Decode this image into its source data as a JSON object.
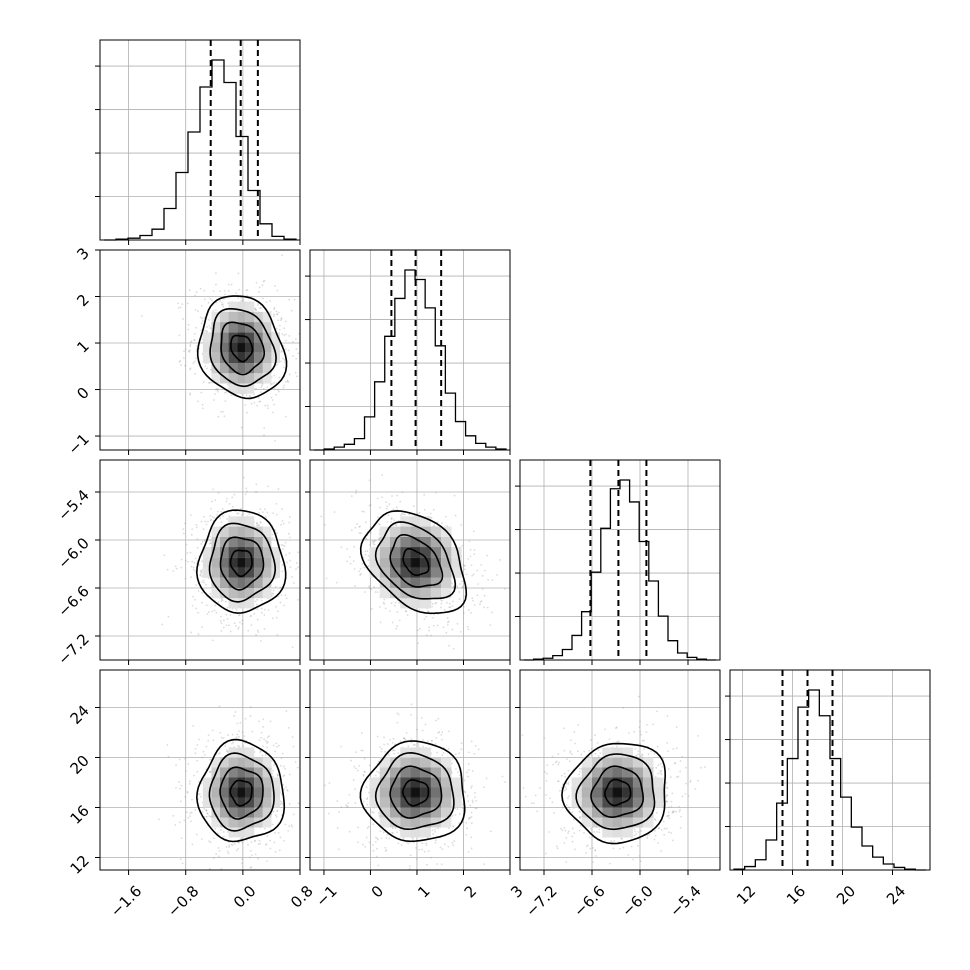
{
  "chart_data": {
    "type": "corner",
    "title": "",
    "grid": true,
    "parameters": [
      {
        "index": 0,
        "axis_range": [
          -2.0,
          0.8
        ],
        "ticks": [
          -1.6,
          -0.8,
          0.0,
          0.8
        ],
        "tick_labels": [
          "−1.6",
          "−0.8",
          "0.0",
          "0.8"
        ],
        "quantiles": [
          -0.45,
          -0.03,
          0.21
        ],
        "hist_counts": [
          0,
          1,
          2,
          5,
          12,
          35,
          75,
          120,
          170,
          200,
          175,
          115,
          55,
          18,
          4,
          1
        ]
      },
      {
        "index": 1,
        "axis_range": [
          -1.3,
          3.0
        ],
        "ticks": [
          -1,
          0,
          1,
          2,
          3
        ],
        "tick_labels": [
          "−1",
          "0",
          "1",
          "2",
          "3"
        ],
        "quantiles": [
          0.45,
          0.97,
          1.52
        ],
        "hist_counts": [
          0,
          1,
          3,
          6,
          12,
          35,
          72,
          120,
          160,
          190,
          180,
          150,
          110,
          60,
          30,
          15,
          7,
          3,
          1
        ]
      },
      {
        "index": 2,
        "axis_range": [
          -7.5,
          -5.0
        ],
        "ticks": [
          -7.2,
          -6.6,
          -6.0,
          -5.4
        ],
        "tick_labels": [
          "−7.2",
          "−6.6",
          "−6.0",
          "−5.4"
        ],
        "quantiles": [
          -6.62,
          -6.27,
          -5.92
        ],
        "hist_counts": [
          0,
          1,
          2,
          5,
          12,
          28,
          55,
          100,
          150,
          195,
          205,
          180,
          135,
          90,
          50,
          22,
          8,
          3,
          1,
          0
        ]
      },
      {
        "index": 3,
        "axis_range": [
          11,
          27
        ],
        "ticks": [
          12,
          16,
          20,
          24
        ],
        "tick_labels": [
          "12",
          "16",
          "20",
          "24"
        ],
        "quantiles": [
          15.2,
          17.2,
          19.2
        ],
        "hist_counts": [
          1,
          4,
          12,
          35,
          78,
          130,
          190,
          210,
          180,
          130,
          85,
          50,
          28,
          15,
          7,
          3,
          1,
          0
        ]
      }
    ],
    "pairs": [
      {
        "row": 1,
        "col": 0,
        "center": [
          -0.02,
          0.9
        ],
        "sd": [
          0.3,
          0.55
        ],
        "corr": -0.15
      },
      {
        "row": 2,
        "col": 0,
        "center": [
          -0.02,
          -6.28
        ],
        "sd": [
          0.3,
          0.32
        ],
        "corr": 0.0
      },
      {
        "row": 2,
        "col": 1,
        "center": [
          0.97,
          -6.28
        ],
        "sd": [
          0.55,
          0.32
        ],
        "corr": -0.35
      },
      {
        "row": 3,
        "col": 0,
        "center": [
          -0.02,
          17.2
        ],
        "sd": [
          0.3,
          2.0
        ],
        "corr": 0.0
      },
      {
        "row": 3,
        "col": 1,
        "center": [
          0.97,
          17.2
        ],
        "sd": [
          0.55,
          2.0
        ],
        "corr": 0.0
      },
      {
        "row": 3,
        "col": 2,
        "center": [
          -6.28,
          17.2
        ],
        "sd": [
          0.32,
          2.0
        ],
        "corr": 0.05
      }
    ],
    "contour_levels_sigma": [
      0.5,
      1.0,
      1.5,
      2.0
    ]
  }
}
